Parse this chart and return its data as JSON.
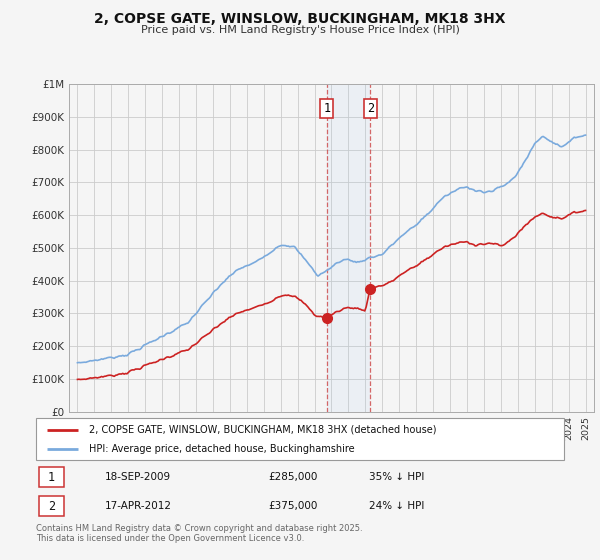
{
  "title": "2, COPSE GATE, WINSLOW, BUCKINGHAM, MK18 3HX",
  "subtitle": "Price paid vs. HM Land Registry's House Price Index (HPI)",
  "legend_line1": "2, COPSE GATE, WINSLOW, BUCKINGHAM, MK18 3HX (detached house)",
  "legend_line2": "HPI: Average price, detached house, Buckinghamshire",
  "footnote": "Contains HM Land Registry data © Crown copyright and database right 2025.\nThis data is licensed under the Open Government Licence v3.0.",
  "table": [
    {
      "num": "1",
      "date": "18-SEP-2009",
      "price": "£285,000",
      "hpi": "35% ↓ HPI"
    },
    {
      "num": "2",
      "date": "17-APR-2012",
      "price": "£375,000",
      "hpi": "24% ↓ HPI"
    }
  ],
  "marker1_x": 2009.72,
  "marker1_y": 285000,
  "marker2_x": 2012.29,
  "marker2_y": 375000,
  "shade_x1": 2009.72,
  "shade_x2": 2012.29,
  "ylim": [
    0,
    1000000
  ],
  "xlim": [
    1994.5,
    2025.5
  ],
  "hpi_color": "#7aaadd",
  "price_color": "#cc2222",
  "background_color": "#f5f5f5",
  "grid_color": "#cccccc"
}
